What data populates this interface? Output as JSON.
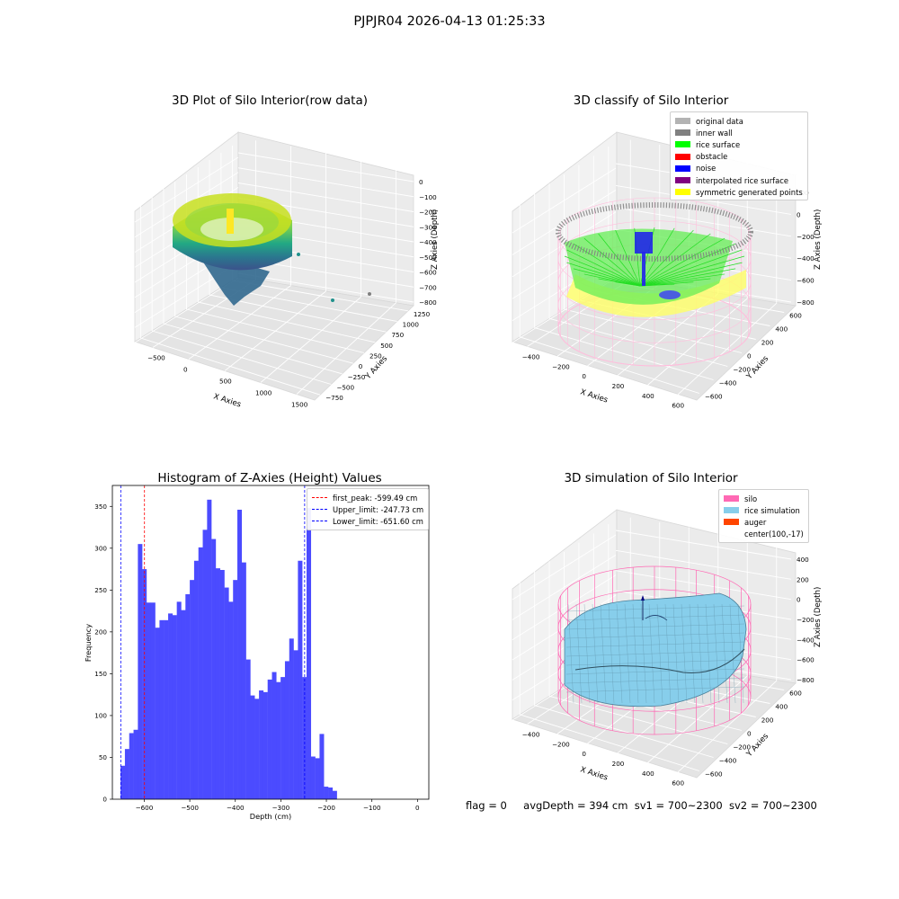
{
  "suptitle": "PJPJR04 2026-04-13 01:25:33",
  "footer": {
    "flag": "flag = 0",
    "avgDepth": "avgDepth = 394 cm",
    "sv1": "sv1 = 700~2300",
    "sv2": "sv2 = 700~2300"
  },
  "chart_data": [
    {
      "type": "scatter",
      "title": "3D Plot of Silo Interior(row data)",
      "xlabel": "X Axies",
      "ylabel": "Y Axies",
      "zlabel": "Z Axies (Depth)",
      "x_ticks": [
        "−500",
        "0",
        "500",
        "1000",
        "1500"
      ],
      "y_ticks": [
        "−750",
        "−500",
        "−250",
        "0",
        "250",
        "500",
        "750",
        "1000",
        "1250"
      ],
      "z_ticks": [
        "0",
        "−100",
        "−200",
        "−300",
        "−400",
        "−500",
        "−600",
        "−700",
        "−800"
      ],
      "colormap": "viridis"
    },
    {
      "type": "scatter",
      "title": "3D classify of Silo Interior",
      "xlabel": "X Axies",
      "ylabel": "Y Axies",
      "zlabel": "Z Axies (Depth)",
      "x_ticks": [
        "−400",
        "−200",
        "0",
        "200",
        "400",
        "600"
      ],
      "y_ticks": [
        "−600",
        "−400",
        "−200",
        "0",
        "200",
        "400",
        "600"
      ],
      "z_ticks": [
        "200",
        "0",
        "−200",
        "−400",
        "−600",
        "−800"
      ],
      "legend": [
        {
          "label": "original data",
          "color": "#b3b3b3"
        },
        {
          "label": "inner wall",
          "color": "#808080"
        },
        {
          "label": "rice surface",
          "color": "#00ff00"
        },
        {
          "label": "obstacle",
          "color": "#ff0000"
        },
        {
          "label": "noise",
          "color": "#0000ff"
        },
        {
          "label": "interpolated rice surface",
          "color": "#800080"
        },
        {
          "label": "symmetric generated points",
          "color": "#ffff00"
        }
      ]
    },
    {
      "type": "bar",
      "title": "Histogram of Z-Axies (Height) Values",
      "xlabel": "Depth (cm)",
      "ylabel": "Frequency",
      "xlim": [
        -670,
        25
      ],
      "ylim": [
        0,
        375
      ],
      "x_ticks": [
        -600,
        -500,
        -400,
        -300,
        -200,
        -100,
        0
      ],
      "y_ticks": [
        0,
        50,
        100,
        150,
        200,
        250,
        300,
        350
      ],
      "bar_color": "#4b4bff",
      "bin_width": 9.5,
      "bin_start": -652,
      "values": [
        40,
        60,
        79,
        83,
        305,
        275,
        235,
        235,
        205,
        214,
        214,
        222,
        220,
        236,
        226,
        245,
        262,
        285,
        301,
        322,
        358,
        311,
        276,
        274,
        253,
        236,
        262,
        346,
        283,
        167,
        124,
        120,
        130,
        128,
        143,
        152,
        140,
        146,
        165,
        192,
        178,
        285,
        146,
        348,
        51,
        49,
        78,
        15,
        14,
        10
      ],
      "vlines": [
        {
          "label": "first_peak: -599.49 cm",
          "x": -599.49,
          "color": "#ff0000"
        },
        {
          "label": "Upper_limit: -247.73 cm",
          "x": -247.73,
          "color": "#0000ff"
        },
        {
          "label": "Lower_limit: -651.60 cm",
          "x": -651.6,
          "color": "#0000ff"
        }
      ]
    },
    {
      "type": "scatter",
      "title": "3D simulation of Silo Interior",
      "xlabel": "X Axies",
      "ylabel": "Y Axies",
      "zlabel": "Z Axies (Depth)",
      "x_ticks": [
        "−400",
        "−200",
        "0",
        "200",
        "400",
        "600"
      ],
      "y_ticks": [
        "−600",
        "−400",
        "−200",
        "0",
        "200",
        "400",
        "600"
      ],
      "z_ticks": [
        "400",
        "200",
        "0",
        "−200",
        "−400",
        "−600",
        "−800"
      ],
      "legend": [
        {
          "label": "silo",
          "color": "#ff69b4"
        },
        {
          "label": "rice simulation",
          "color": "#87ceeb"
        },
        {
          "label": "auger",
          "color": "#ff4500"
        },
        {
          "label": "center(100,-17)",
          "color": ""
        }
      ]
    }
  ]
}
